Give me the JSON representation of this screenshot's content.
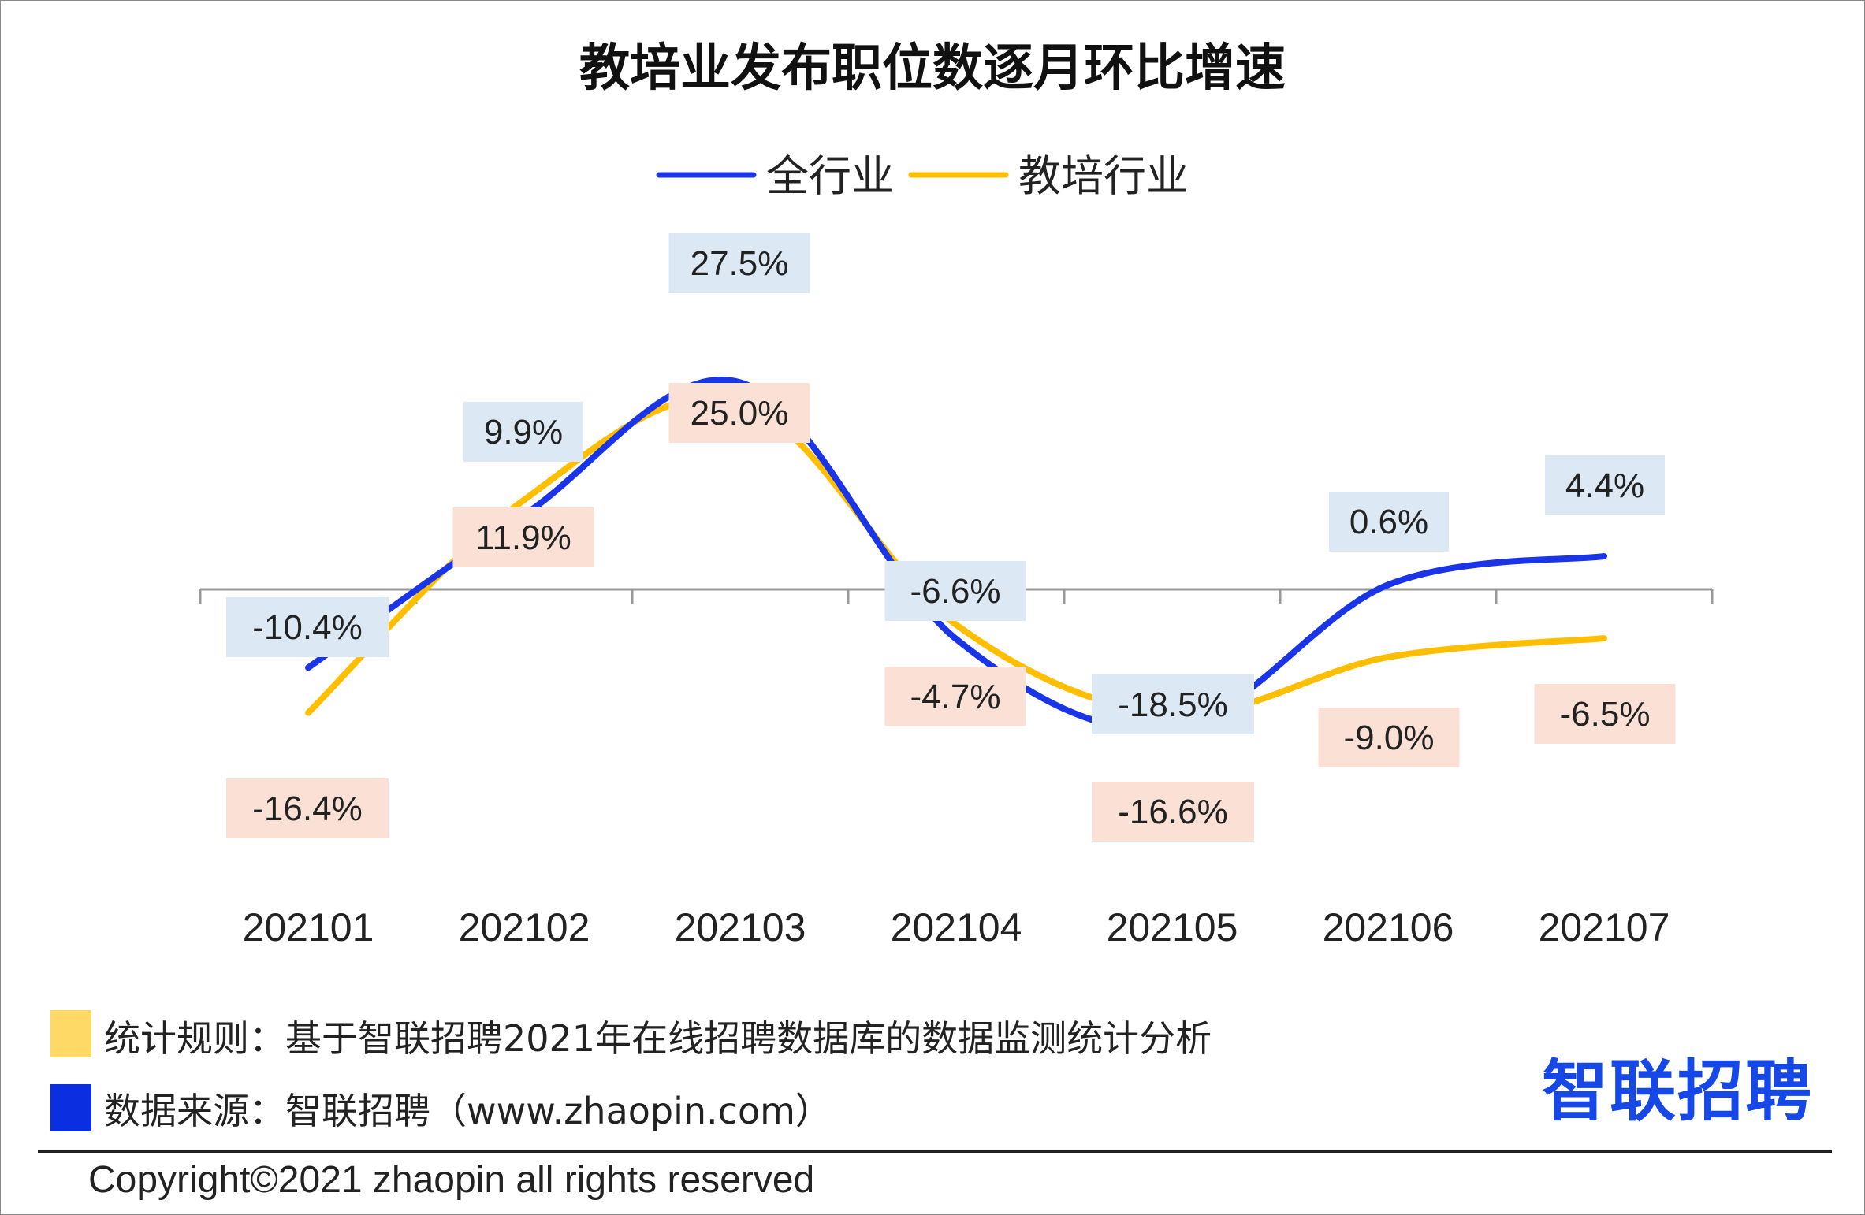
{
  "chart_data": {
    "type": "line",
    "title": "教培业发布职位数逐月环比增速",
    "categories": [
      "202101",
      "202102",
      "202103",
      "202104",
      "202105",
      "202106",
      "202107"
    ],
    "series": [
      {
        "name": "全行业",
        "color": "#1a35e8",
        "label_bg": "#dde8f5",
        "values": [
          -10.4,
          9.9,
          27.5,
          -6.6,
          -18.5,
          0.6,
          4.4
        ],
        "labels": [
          "-10.4%",
          "9.9%",
          "27.5%",
          "-6.6%",
          "-18.5%",
          "0.6%",
          "4.4%"
        ]
      },
      {
        "name": "教培行业",
        "color": "#ffbf00",
        "label_bg": "#fbe1d5",
        "values": [
          -16.4,
          11.9,
          25.0,
          -4.7,
          -16.6,
          -9.0,
          -6.5
        ],
        "labels": [
          "-16.4%",
          "11.9%",
          "25.0%",
          "-4.7%",
          "-16.6%",
          "-9.0%",
          "-6.5%"
        ]
      }
    ],
    "legend_position": "top",
    "grid": false
  },
  "notes": {
    "rule": "统计规则：基于智联招聘2021年在线招聘数据库的数据监测统计分析",
    "rule_color": "#ffd966",
    "source": "数据来源：智联招聘（www.zhaopin.com）",
    "source_color": "#0a2ee0"
  },
  "logo": {
    "text": "智联招聘",
    "color": "#1648e8",
    "icon": "zhaopin-logo"
  },
  "copyright": "Copyright©2021 zhaopin all rights reserved"
}
